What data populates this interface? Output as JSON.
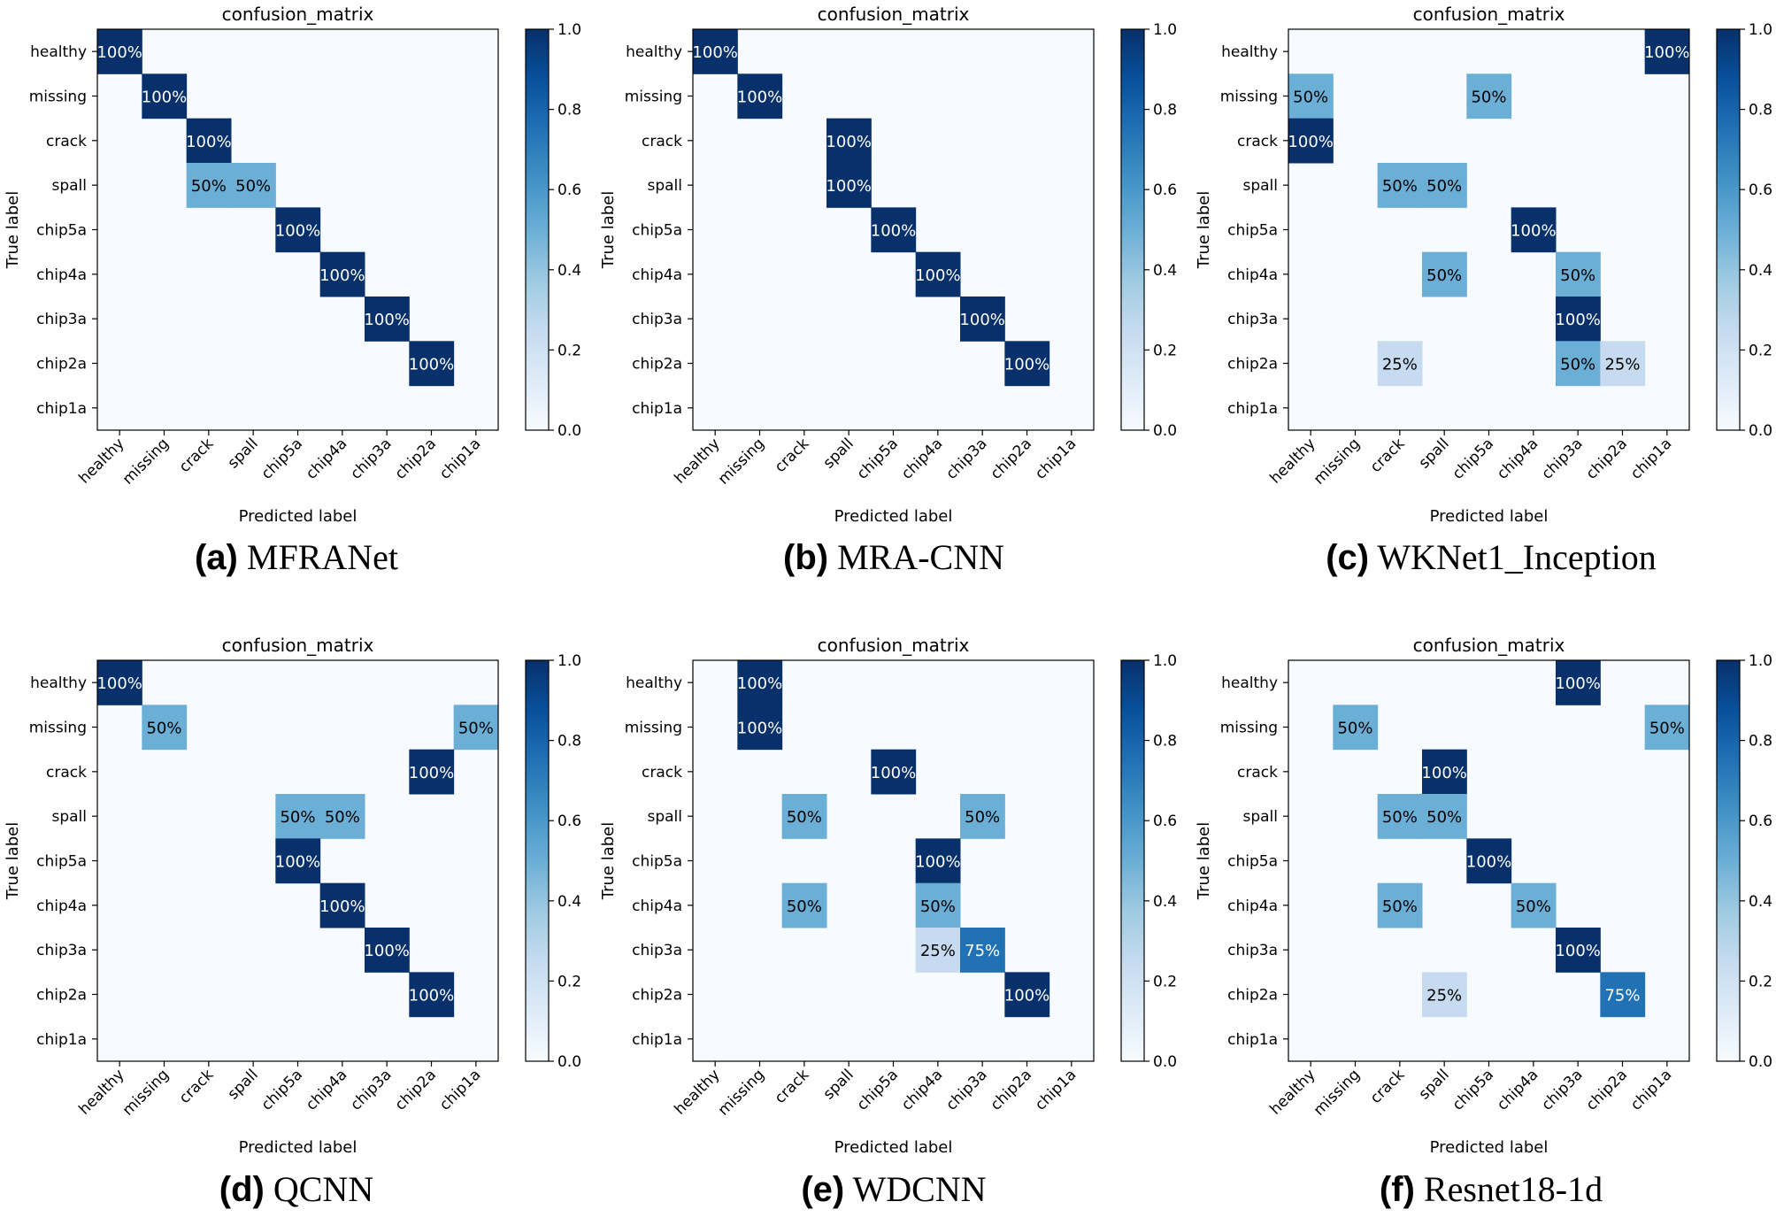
{
  "chart_data": [
    {
      "type": "heatmap",
      "title": "confusion_matrix",
      "xlabel": "Predicted label",
      "ylabel": "True label",
      "labels": [
        "healthy",
        "missing",
        "crack",
        "spall",
        "chip5a",
        "chip4a",
        "chip3a",
        "chip2a",
        "chip1a"
      ],
      "colorbar": {
        "range": [
          0.0,
          1.0
        ],
        "ticks": [
          "0.0",
          "0.2",
          "0.4",
          "0.6",
          "0.8",
          "1.0"
        ]
      },
      "caption_letter": "(a)",
      "caption_name": "MFRANet",
      "cells": [
        {
          "row": 0,
          "col": 0,
          "value": 1.0,
          "label": "100%"
        },
        {
          "row": 1,
          "col": 1,
          "value": 1.0,
          "label": "100%"
        },
        {
          "row": 2,
          "col": 2,
          "value": 1.0,
          "label": "100%"
        },
        {
          "row": 3,
          "col": 2,
          "value": 0.5,
          "label": "50%"
        },
        {
          "row": 3,
          "col": 3,
          "value": 0.5,
          "label": "50%"
        },
        {
          "row": 4,
          "col": 4,
          "value": 1.0,
          "label": "100%"
        },
        {
          "row": 5,
          "col": 5,
          "value": 1.0,
          "label": "100%"
        },
        {
          "row": 6,
          "col": 6,
          "value": 1.0,
          "label": "100%"
        },
        {
          "row": 7,
          "col": 7,
          "value": 1.0,
          "label": "100%"
        }
      ]
    },
    {
      "type": "heatmap",
      "title": "confusion_matrix",
      "xlabel": "Predicted label",
      "ylabel": "True label",
      "labels": [
        "healthy",
        "missing",
        "crack",
        "spall",
        "chip5a",
        "chip4a",
        "chip3a",
        "chip2a",
        "chip1a"
      ],
      "colorbar": {
        "range": [
          0.0,
          1.0
        ],
        "ticks": [
          "0.0",
          "0.2",
          "0.4",
          "0.6",
          "0.8",
          "1.0"
        ]
      },
      "caption_letter": "(b)",
      "caption_name": "MRA-CNN",
      "cells": [
        {
          "row": 0,
          "col": 0,
          "value": 1.0,
          "label": "100%"
        },
        {
          "row": 1,
          "col": 1,
          "value": 1.0,
          "label": "100%"
        },
        {
          "row": 2,
          "col": 3,
          "value": 1.0,
          "label": "100%"
        },
        {
          "row": 3,
          "col": 3,
          "value": 1.0,
          "label": "100%"
        },
        {
          "row": 4,
          "col": 4,
          "value": 1.0,
          "label": "100%"
        },
        {
          "row": 5,
          "col": 5,
          "value": 1.0,
          "label": "100%"
        },
        {
          "row": 6,
          "col": 6,
          "value": 1.0,
          "label": "100%"
        },
        {
          "row": 7,
          "col": 7,
          "value": 1.0,
          "label": "100%"
        }
      ]
    },
    {
      "type": "heatmap",
      "title": "confusion_matrix",
      "xlabel": "Predicted label",
      "ylabel": "True label",
      "labels": [
        "healthy",
        "missing",
        "crack",
        "spall",
        "chip5a",
        "chip4a",
        "chip3a",
        "chip2a",
        "chip1a"
      ],
      "colorbar": {
        "range": [
          0.0,
          1.0
        ],
        "ticks": [
          "0.0",
          "0.2",
          "0.4",
          "0.6",
          "0.8",
          "1.0"
        ]
      },
      "caption_letter": "(c)",
      "caption_name": "WKNet1_Inception",
      "cells": [
        {
          "row": 0,
          "col": 8,
          "value": 1.0,
          "label": "100%"
        },
        {
          "row": 1,
          "col": 0,
          "value": 0.5,
          "label": "50%"
        },
        {
          "row": 1,
          "col": 4,
          "value": 0.5,
          "label": "50%"
        },
        {
          "row": 2,
          "col": 0,
          "value": 1.0,
          "label": "100%"
        },
        {
          "row": 3,
          "col": 2,
          "value": 0.5,
          "label": "50%"
        },
        {
          "row": 3,
          "col": 3,
          "value": 0.5,
          "label": "50%"
        },
        {
          "row": 4,
          "col": 5,
          "value": 1.0,
          "label": "100%"
        },
        {
          "row": 5,
          "col": 3,
          "value": 0.5,
          "label": "50%"
        },
        {
          "row": 5,
          "col": 6,
          "value": 0.5,
          "label": "50%"
        },
        {
          "row": 6,
          "col": 6,
          "value": 1.0,
          "label": "100%"
        },
        {
          "row": 7,
          "col": 2,
          "value": 0.25,
          "label": "25%"
        },
        {
          "row": 7,
          "col": 6,
          "value": 0.5,
          "label": "50%"
        },
        {
          "row": 7,
          "col": 7,
          "value": 0.25,
          "label": "25%"
        }
      ]
    },
    {
      "type": "heatmap",
      "title": "confusion_matrix",
      "xlabel": "Predicted label",
      "ylabel": "True label",
      "labels": [
        "healthy",
        "missing",
        "crack",
        "spall",
        "chip5a",
        "chip4a",
        "chip3a",
        "chip2a",
        "chip1a"
      ],
      "colorbar": {
        "range": [
          0.0,
          1.0
        ],
        "ticks": [
          "0.0",
          "0.2",
          "0.4",
          "0.6",
          "0.8",
          "1.0"
        ]
      },
      "caption_letter": "(d)",
      "caption_name": "QCNN",
      "cells": [
        {
          "row": 0,
          "col": 0,
          "value": 1.0,
          "label": "100%"
        },
        {
          "row": 1,
          "col": 1,
          "value": 0.5,
          "label": "50%"
        },
        {
          "row": 1,
          "col": 8,
          "value": 0.5,
          "label": "50%"
        },
        {
          "row": 2,
          "col": 7,
          "value": 1.0,
          "label": "100%"
        },
        {
          "row": 3,
          "col": 4,
          "value": 0.5,
          "label": "50%"
        },
        {
          "row": 3,
          "col": 5,
          "value": 0.5,
          "label": "50%"
        },
        {
          "row": 4,
          "col": 4,
          "value": 1.0,
          "label": "100%"
        },
        {
          "row": 5,
          "col": 5,
          "value": 1.0,
          "label": "100%"
        },
        {
          "row": 6,
          "col": 6,
          "value": 1.0,
          "label": "100%"
        },
        {
          "row": 7,
          "col": 7,
          "value": 1.0,
          "label": "100%"
        }
      ]
    },
    {
      "type": "heatmap",
      "title": "confusion_matrix",
      "xlabel": "Predicted label",
      "ylabel": "True label",
      "labels": [
        "healthy",
        "missing",
        "crack",
        "spall",
        "chip5a",
        "chip4a",
        "chip3a",
        "chip2a",
        "chip1a"
      ],
      "colorbar": {
        "range": [
          0.0,
          1.0
        ],
        "ticks": [
          "0.0",
          "0.2",
          "0.4",
          "0.6",
          "0.8",
          "1.0"
        ]
      },
      "caption_letter": "(e)",
      "caption_name": "WDCNN",
      "cells": [
        {
          "row": 0,
          "col": 1,
          "value": 1.0,
          "label": "100%"
        },
        {
          "row": 1,
          "col": 1,
          "value": 1.0,
          "label": "100%"
        },
        {
          "row": 2,
          "col": 4,
          "value": 1.0,
          "label": "100%"
        },
        {
          "row": 3,
          "col": 2,
          "value": 0.5,
          "label": "50%"
        },
        {
          "row": 3,
          "col": 6,
          "value": 0.5,
          "label": "50%"
        },
        {
          "row": 4,
          "col": 5,
          "value": 1.0,
          "label": "100%"
        },
        {
          "row": 5,
          "col": 2,
          "value": 0.5,
          "label": "50%"
        },
        {
          "row": 5,
          "col": 5,
          "value": 0.5,
          "label": "50%"
        },
        {
          "row": 6,
          "col": 5,
          "value": 0.25,
          "label": "25%"
        },
        {
          "row": 6,
          "col": 6,
          "value": 0.75,
          "label": "75%"
        },
        {
          "row": 7,
          "col": 7,
          "value": 1.0,
          "label": "100%"
        }
      ]
    },
    {
      "type": "heatmap",
      "title": "confusion_matrix",
      "xlabel": "Predicted label",
      "ylabel": "True label",
      "labels": [
        "healthy",
        "missing",
        "crack",
        "spall",
        "chip5a",
        "chip4a",
        "chip3a",
        "chip2a",
        "chip1a"
      ],
      "colorbar": {
        "range": [
          0.0,
          1.0
        ],
        "ticks": [
          "0.0",
          "0.2",
          "0.4",
          "0.6",
          "0.8",
          "1.0"
        ]
      },
      "caption_letter": "(f)",
      "caption_name": "Resnet18-1d",
      "cells": [
        {
          "row": 0,
          "col": 6,
          "value": 1.0,
          "label": "100%"
        },
        {
          "row": 1,
          "col": 1,
          "value": 0.5,
          "label": "50%"
        },
        {
          "row": 1,
          "col": 8,
          "value": 0.5,
          "label": "50%"
        },
        {
          "row": 2,
          "col": 3,
          "value": 1.0,
          "label": "100%"
        },
        {
          "row": 3,
          "col": 2,
          "value": 0.5,
          "label": "50%"
        },
        {
          "row": 3,
          "col": 3,
          "value": 0.5,
          "label": "50%"
        },
        {
          "row": 4,
          "col": 4,
          "value": 1.0,
          "label": "100%"
        },
        {
          "row": 5,
          "col": 2,
          "value": 0.5,
          "label": "50%"
        },
        {
          "row": 5,
          "col": 5,
          "value": 0.5,
          "label": "50%"
        },
        {
          "row": 6,
          "col": 6,
          "value": 1.0,
          "label": "100%"
        },
        {
          "row": 7,
          "col": 3,
          "value": 0.25,
          "label": "25%"
        },
        {
          "row": 7,
          "col": 7,
          "value": 0.75,
          "label": "75%"
        }
      ]
    }
  ],
  "colormap": {
    "name": "Blues",
    "stops": [
      "#f7fbff",
      "#deebf7",
      "#c6dbef",
      "#9ecae1",
      "#6baed6",
      "#4292c6",
      "#2171b5",
      "#08519c",
      "#08306b"
    ]
  }
}
